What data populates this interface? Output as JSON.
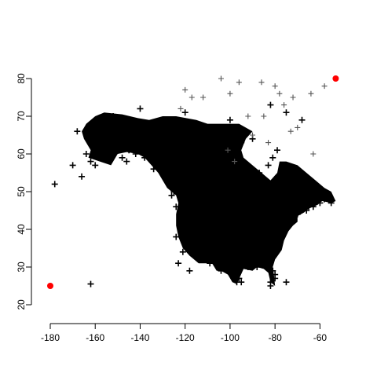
{
  "chart_data": {
    "type": "scatter",
    "title": "",
    "xlabel": "",
    "ylabel": "",
    "xlim": [
      -180,
      -50
    ],
    "ylim": [
      20,
      80
    ],
    "xticks": [
      -180,
      -160,
      -140,
      -120,
      -100,
      -80,
      -60
    ],
    "yticks": [
      20,
      30,
      40,
      50,
      60,
      70,
      80
    ],
    "grid": false,
    "legend": "none",
    "colors": {
      "points": "#000000",
      "highlight": "#ff0000"
    },
    "series": [
      {
        "marker": "plus",
        "x": [
          -178,
          -170,
          -168,
          -166,
          -162,
          -158,
          -155,
          -152,
          -150,
          -147,
          -145,
          -142,
          -140,
          -137,
          -135,
          -133,
          -130,
          -127,
          -125,
          -122,
          -120,
          -118,
          -115,
          -112,
          -110,
          -108,
          -105,
          -102,
          -100,
          -98,
          -97,
          -95,
          -92,
          -90,
          -88,
          -85,
          -82,
          -80,
          -78,
          -77,
          -75,
          -72,
          -70,
          -68,
          -66,
          -65,
          -63,
          -62,
          -60,
          -58,
          -56,
          -55,
          -140,
          -120,
          -110,
          -100,
          -95,
          -90,
          -82,
          -75,
          -68,
          -123,
          -118,
          -115,
          -112,
          -108,
          -104,
          -100,
          -96,
          -92,
          -88,
          -84,
          -80,
          -76,
          -72,
          -70,
          -66,
          -162,
          -160,
          -164,
          -156,
          -153,
          -148,
          -146,
          -144,
          -138,
          -134,
          -130,
          -126,
          -124,
          -121,
          -117,
          -113,
          -106,
          -103,
          -99,
          -97,
          -94,
          -91,
          -87,
          -83,
          -81,
          -79,
          -124,
          -119,
          -114,
          -109,
          -104,
          -97,
          -88,
          -80,
          -75,
          -81,
          -82,
          -97,
          -96,
          -121,
          -117,
          -112,
          -107,
          -102,
          -98,
          -93,
          -89,
          -85,
          -162,
          -118,
          -82
        ],
        "y": [
          52,
          57,
          66,
          54,
          63,
          65,
          69,
          70,
          62,
          64,
          61,
          60,
          66,
          68,
          63,
          65,
          57,
          54,
          50,
          48,
          46,
          44,
          42,
          40,
          38,
          36,
          35,
          33,
          30,
          28,
          27,
          26,
          30,
          32,
          34,
          33,
          31,
          28,
          37,
          40,
          42,
          44,
          45,
          47,
          48,
          46,
          46,
          48,
          47,
          48,
          48,
          47,
          72,
          71,
          66,
          69,
          63,
          64,
          73,
          71,
          69,
          31,
          35,
          38,
          41,
          44,
          47,
          49,
          46,
          43,
          40,
          37,
          35,
          39,
          42,
          44,
          45,
          58,
          57,
          60,
          59,
          61,
          59,
          58,
          62,
          59,
          56,
          55,
          49,
          46,
          43,
          45,
          48,
          50,
          51,
          53,
          52,
          54,
          56,
          55,
          57,
          59,
          61,
          38,
          36,
          33,
          31,
          29,
          28,
          30,
          27,
          26,
          29,
          25,
          26,
          27,
          34,
          37,
          39,
          41,
          43,
          45,
          47,
          49,
          51,
          25.5,
          29,
          26
        ]
      },
      {
        "marker": "plus",
        "color": "#555555",
        "x": [
          -120,
          -112,
          -104,
          -96,
          -86,
          -78,
          -72,
          -64,
          -58,
          -122,
          -100,
          -92,
          -90,
          -85,
          -80,
          -76,
          -70,
          -63,
          -101,
          -117,
          -98,
          -83,
          -73
        ],
        "y": [
          77,
          75,
          80,
          79,
          79,
          76,
          75,
          76,
          78,
          72,
          76,
          70,
          65,
          70,
          78,
          73,
          67,
          60,
          61,
          75,
          58,
          63,
          66
        ]
      },
      {
        "marker": "dot",
        "color": "#ff0000",
        "x": [
          -180,
          -53
        ],
        "y": [
          25,
          80
        ]
      }
    ]
  }
}
